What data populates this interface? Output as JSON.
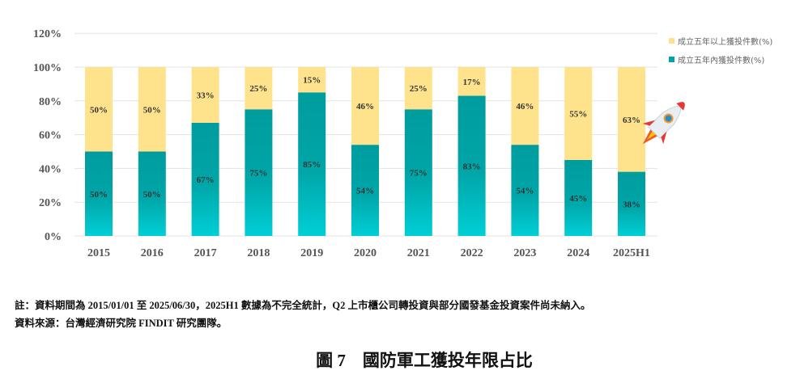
{
  "chart_data": {
    "type": "stacked-bar",
    "categories": [
      "2015",
      "2016",
      "2017",
      "2018",
      "2019",
      "2020",
      "2021",
      "2022",
      "2023",
      "2024",
      "2025H1"
    ],
    "series": [
      {
        "name": "成立五年內獲投件數(%)",
        "values": [
          50,
          50,
          67,
          75,
          85,
          54,
          75,
          83,
          54,
          45,
          38
        ],
        "color": "#00a3a6"
      },
      {
        "name": "成立五年以上獲投件數(%)",
        "values": [
          50,
          50,
          33,
          25,
          15,
          46,
          25,
          17,
          46,
          55,
          63
        ],
        "color": "#ffe38c"
      }
    ],
    "ylim": [
      0,
      120
    ],
    "yticks": [
      "0%",
      "20%",
      "40%",
      "60%",
      "80%",
      "100%",
      "120%"
    ],
    "grid": true,
    "legend": "top-right"
  },
  "legend": [
    "成立五年以上獲投件數(%)",
    "成立五年內獲投件數(%)"
  ],
  "notes": {
    "note": "註：資料期間為 2015/01/01 至 2025/06/30，2025H1 數據為不完全統計，Q2 上市櫃公司轉投資與部分國發基金投資案件尚未納入。",
    "source": "資料來源：台灣經濟研究院 FINDIT 研究團隊。"
  },
  "caption": "圖 7　國防軍工獲投年限占比"
}
